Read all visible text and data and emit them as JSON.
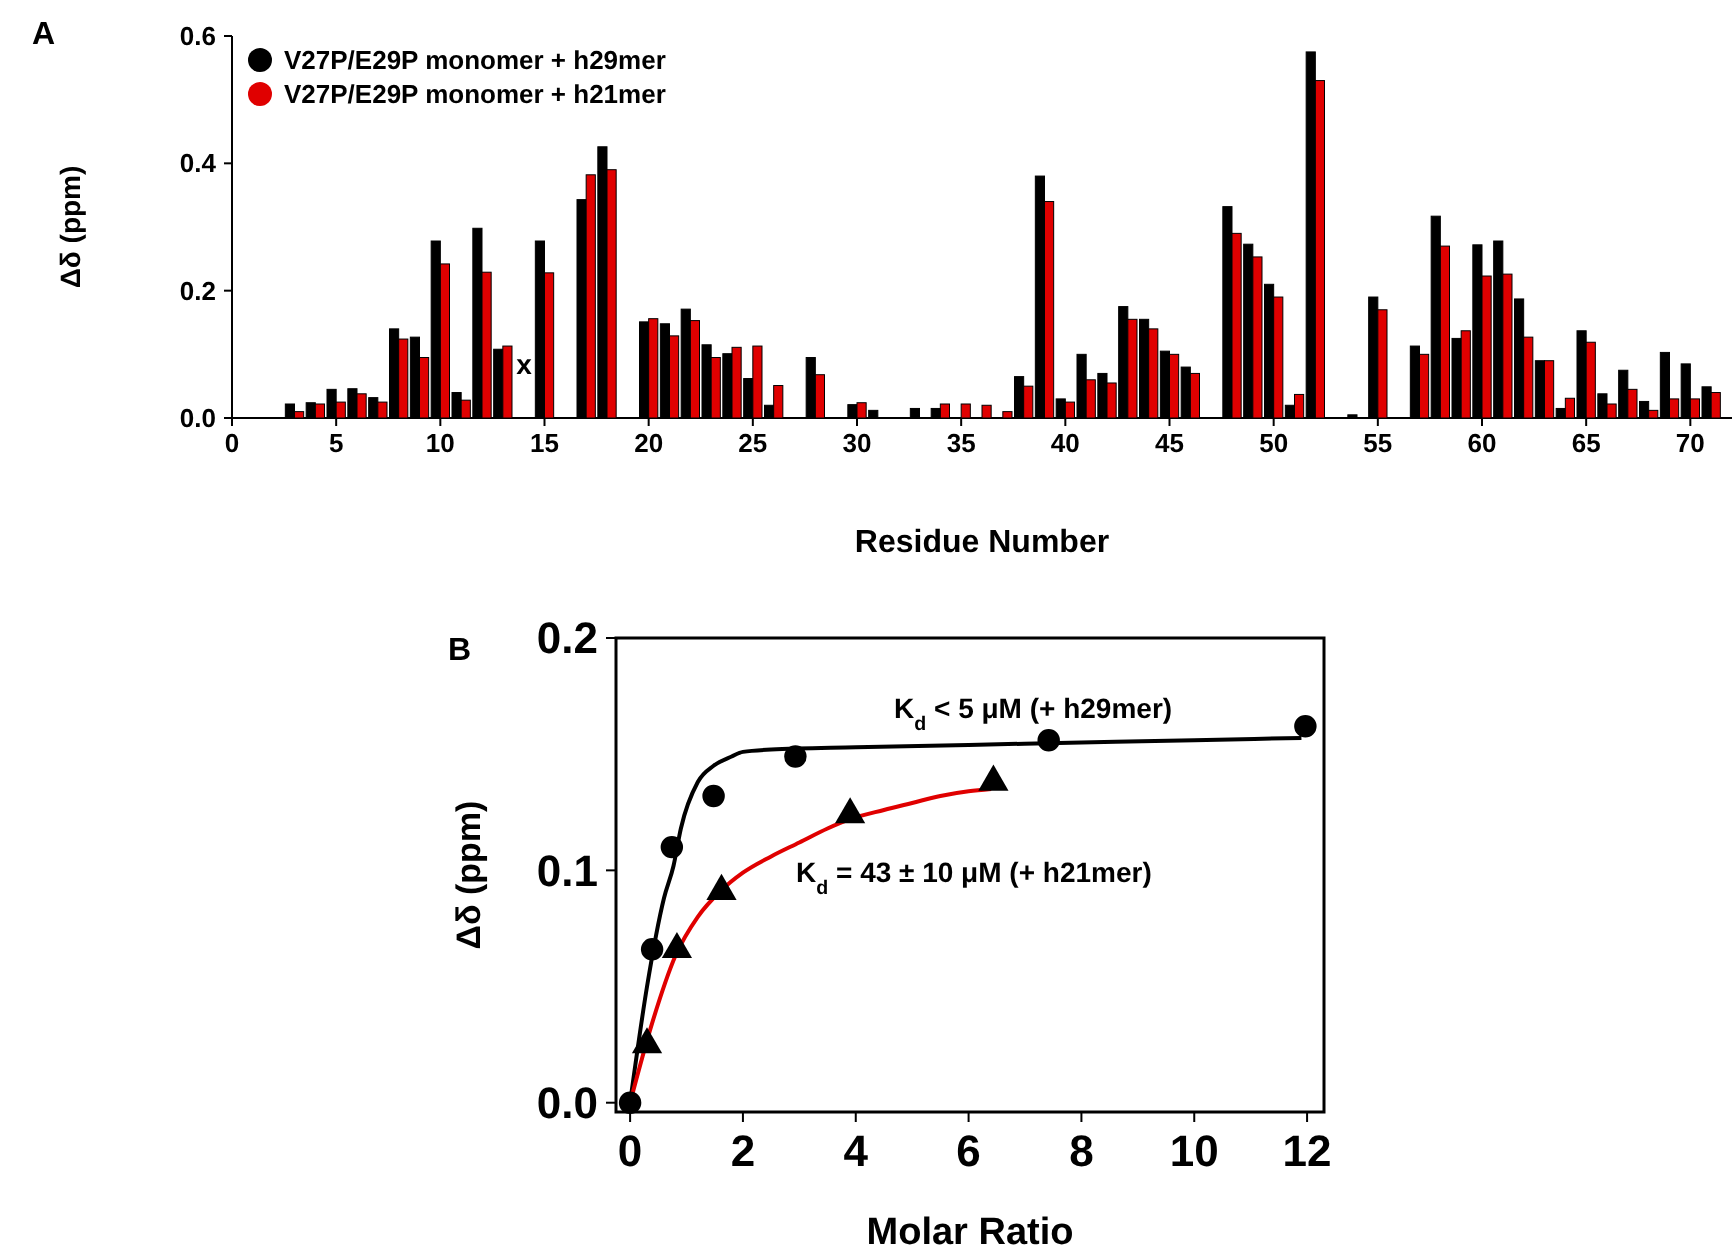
{
  "chart_data": [
    {
      "type": "bar",
      "title": "A",
      "xlabel": "Residue Number",
      "ylabel": "Δδ (ppm)",
      "x": [
        3,
        4,
        5,
        6,
        7,
        8,
        9,
        10,
        11,
        12,
        13,
        15,
        17,
        18,
        20,
        21,
        22,
        23,
        24,
        25,
        26,
        28,
        30,
        31,
        33,
        34,
        35,
        36,
        37,
        38,
        39,
        40,
        41,
        42,
        43,
        44,
        45,
        46,
        48,
        49,
        50,
        51,
        52,
        54,
        55,
        57,
        58,
        59,
        60,
        61,
        62,
        63,
        64,
        65,
        66,
        67,
        68,
        69,
        70,
        71
      ],
      "series": [
        {
          "name": "V27P/E29P monomer + h29mer",
          "color": "#000000",
          "values": [
            0.022,
            0.024,
            0.045,
            0.046,
            0.032,
            0.14,
            0.127,
            0.278,
            0.04,
            0.298,
            0.108,
            0.278,
            0.343,
            0.426,
            0.151,
            0.148,
            0.171,
            0.115,
            0.101,
            0.062,
            0.02,
            0.095,
            0.021,
            0.012,
            0.015,
            0.015,
            null,
            null,
            null,
            0.065,
            0.38,
            0.03,
            0.1,
            0.07,
            0.175,
            0.155,
            0.105,
            0.08,
            0.332,
            0.273,
            0.21,
            0.02,
            0.575,
            0.005,
            0.19,
            0.113,
            0.317,
            0.125,
            0.272,
            0.278,
            0.187,
            0.09,
            0.015,
            0.137,
            0.038,
            0.075,
            0.026,
            0.103,
            0.085,
            0.049
          ]
        },
        {
          "name": "V27P/E29P monomer + h21mer",
          "color": "#e00000",
          "values": [
            0.01,
            0.022,
            0.025,
            0.038,
            0.025,
            0.124,
            0.095,
            0.242,
            0.028,
            0.229,
            0.113,
            0.228,
            0.382,
            0.39,
            0.156,
            0.129,
            0.153,
            0.095,
            0.111,
            0.113,
            0.051,
            0.068,
            0.024,
            null,
            null,
            0.022,
            0.022,
            0.02,
            0.01,
            0.05,
            0.34,
            0.025,
            0.06,
            0.055,
            0.155,
            0.14,
            0.1,
            0.07,
            0.29,
            0.253,
            0.19,
            0.037,
            0.53,
            null,
            0.17,
            0.1,
            0.27,
            0.137,
            0.223,
            0.226,
            0.127,
            0.09,
            0.031,
            0.119,
            0.022,
            0.045,
            0.012,
            0.03,
            0.03,
            0.04
          ]
        }
      ],
      "xlim": [
        0,
        72
      ],
      "xticks": [
        0,
        5,
        10,
        15,
        20,
        25,
        30,
        35,
        40,
        45,
        50,
        55,
        60,
        65,
        70
      ],
      "ylim": [
        0,
        0.6
      ],
      "yticks": [
        {
          "value": 0,
          "label": "0.0"
        },
        {
          "value": 0.2,
          "label": "0.2"
        },
        {
          "value": 0.4,
          "label": "0.4"
        },
        {
          "value": 0.6,
          "label": "0.6"
        }
      ],
      "legend": "top left",
      "annotations": [
        "x"
      ]
    },
    {
      "type": "scatter",
      "title": "B",
      "xlabel": "Molar Ratio",
      "ylabel": "Δδ (ppm)",
      "series": [
        {
          "type": "line",
          "color": "#000000",
          "x": [
            0,
            0.3,
            0.6,
            0.77,
            0.9,
            1.2,
            1.48,
            1.8,
            2.0,
            2.5,
            4,
            6,
            8,
            10,
            11.9
          ],
          "values": [
            0,
            0.05,
            0.088,
            0.102,
            0.118,
            0.138,
            0.145,
            0.149,
            0.151,
            0.152,
            0.153,
            0.154,
            0.155,
            0.156,
            0.157
          ]
        },
        {
          "type": "line",
          "color": "#e00000",
          "x": [
            0,
            0.4,
            0.8,
            1.2,
            1.6,
            2.0,
            2.5,
            3.0,
            3.5,
            3.9,
            4.5,
            5.0,
            5.5,
            6.0,
            6.4
          ],
          "values": [
            0,
            0.035,
            0.063,
            0.08,
            0.091,
            0.099,
            0.106,
            0.112,
            0.118,
            0.122,
            0.126,
            0.129,
            0.132,
            0.134,
            0.135
          ]
        },
        {
          "color": "#000000",
          "marker": "circle",
          "x": [
            0,
            0.39,
            0.74,
            1.48,
            2.93,
            7.42,
            11.97
          ],
          "values": [
            0,
            0.066,
            0.11,
            0.132,
            0.149,
            0.156,
            0.162
          ]
        },
        {
          "color": "#000000",
          "marker": "triangle",
          "x": [
            0.3,
            0.83,
            1.62,
            3.9,
            6.44
          ],
          "values": [
            0.025,
            0.066,
            0.091,
            0.124,
            0.138
          ]
        }
      ],
      "xlim": [
        -0.25,
        12.3
      ],
      "xticks": [
        0,
        2,
        4,
        6,
        8,
        10,
        12
      ],
      "ylim": [
        -0.004,
        0.2
      ],
      "yticks": [
        {
          "value": 0,
          "label": "0.0"
        },
        {
          "value": 0.1,
          "label": "0.1"
        },
        {
          "value": 0.2,
          "label": "0.2"
        }
      ],
      "annotations": [
        "K$_{d}$ < 5 μM (+ h29mer)",
        "K$_{d}$ = 43 ± 10 μM (+ h21mer)"
      ]
    }
  ]
}
